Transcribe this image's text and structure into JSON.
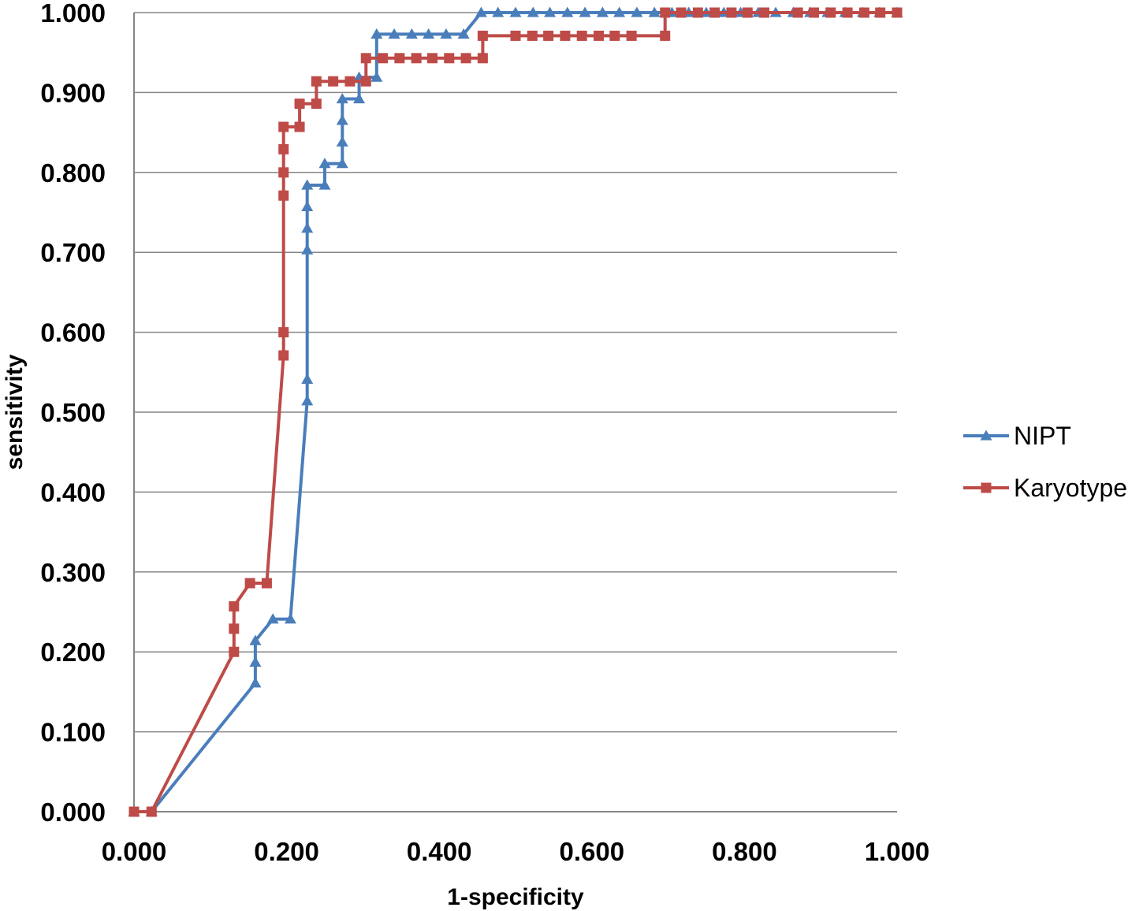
{
  "chart_data": {
    "type": "line",
    "title": "",
    "xlabel": "1-specificity",
    "ylabel": "sensitivity",
    "xlim": [
      0,
      1
    ],
    "ylim": [
      0,
      1
    ],
    "x_ticks": [
      "0.000",
      "0.200",
      "0.400",
      "0.600",
      "0.800",
      "1.000"
    ],
    "y_ticks": [
      "0.000",
      "0.100",
      "0.200",
      "0.300",
      "0.400",
      "0.500",
      "0.600",
      "0.700",
      "0.800",
      "0.900",
      "1.000"
    ],
    "grid": "horizontal",
    "legend_position": "right",
    "series": [
      {
        "name": "NIPT",
        "color": "#4a7ebb",
        "marker": "triangle",
        "points": [
          [
            0.0,
            0.0
          ],
          [
            0.023,
            0.0
          ],
          [
            0.159,
            0.161
          ],
          [
            0.159,
            0.187
          ],
          [
            0.159,
            0.214
          ],
          [
            0.182,
            0.241
          ],
          [
            0.205,
            0.241
          ],
          [
            0.227,
            0.514
          ],
          [
            0.227,
            0.541
          ],
          [
            0.227,
            0.703
          ],
          [
            0.227,
            0.73
          ],
          [
            0.227,
            0.757
          ],
          [
            0.227,
            0.784
          ],
          [
            0.25,
            0.784
          ],
          [
            0.25,
            0.811
          ],
          [
            0.273,
            0.811
          ],
          [
            0.273,
            0.838
          ],
          [
            0.273,
            0.865
          ],
          [
            0.273,
            0.892
          ],
          [
            0.295,
            0.892
          ],
          [
            0.295,
            0.919
          ],
          [
            0.318,
            0.919
          ],
          [
            0.318,
            0.973
          ],
          [
            0.341,
            0.973
          ],
          [
            0.364,
            0.973
          ],
          [
            0.386,
            0.973
          ],
          [
            0.409,
            0.973
          ],
          [
            0.432,
            0.973
          ],
          [
            0.455,
            1.0
          ],
          [
            0.477,
            1.0
          ],
          [
            0.5,
            1.0
          ],
          [
            0.523,
            1.0
          ],
          [
            0.545,
            1.0
          ],
          [
            0.568,
            1.0
          ],
          [
            0.591,
            1.0
          ],
          [
            0.614,
            1.0
          ],
          [
            0.636,
            1.0
          ],
          [
            0.659,
            1.0
          ],
          [
            0.682,
            1.0
          ],
          [
            0.705,
            1.0
          ],
          [
            0.727,
            1.0
          ],
          [
            0.75,
            1.0
          ],
          [
            0.773,
            1.0
          ],
          [
            0.795,
            1.0
          ],
          [
            0.818,
            1.0
          ],
          [
            0.841,
            1.0
          ],
          [
            0.864,
            1.0
          ],
          [
            0.886,
            1.0
          ],
          [
            0.909,
            1.0
          ],
          [
            0.932,
            1.0
          ],
          [
            0.955,
            1.0
          ],
          [
            0.977,
            1.0
          ],
          [
            1.0,
            1.0
          ]
        ]
      },
      {
        "name": "Karyotype",
        "color": "#be4b48",
        "marker": "square",
        "points": [
          [
            0.0,
            0.0
          ],
          [
            0.023,
            0.0
          ],
          [
            0.131,
            0.2
          ],
          [
            0.131,
            0.229
          ],
          [
            0.131,
            0.257
          ],
          [
            0.152,
            0.286
          ],
          [
            0.174,
            0.286
          ],
          [
            0.196,
            0.571
          ],
          [
            0.196,
            0.6
          ],
          [
            0.196,
            0.771
          ],
          [
            0.196,
            0.8
          ],
          [
            0.196,
            0.829
          ],
          [
            0.196,
            0.857
          ],
          [
            0.217,
            0.857
          ],
          [
            0.217,
            0.886
          ],
          [
            0.239,
            0.886
          ],
          [
            0.239,
            0.914
          ],
          [
            0.261,
            0.914
          ],
          [
            0.283,
            0.914
          ],
          [
            0.304,
            0.914
          ],
          [
            0.304,
            0.943
          ],
          [
            0.326,
            0.943
          ],
          [
            0.348,
            0.943
          ],
          [
            0.37,
            0.943
          ],
          [
            0.391,
            0.943
          ],
          [
            0.413,
            0.943
          ],
          [
            0.435,
            0.943
          ],
          [
            0.457,
            0.943
          ],
          [
            0.457,
            0.971
          ],
          [
            0.5,
            0.971
          ],
          [
            0.522,
            0.971
          ],
          [
            0.543,
            0.971
          ],
          [
            0.565,
            0.971
          ],
          [
            0.587,
            0.971
          ],
          [
            0.609,
            0.971
          ],
          [
            0.63,
            0.971
          ],
          [
            0.652,
            0.971
          ],
          [
            0.696,
            0.971
          ],
          [
            0.696,
            1.0
          ],
          [
            0.717,
            1.0
          ],
          [
            0.739,
            1.0
          ],
          [
            0.761,
            1.0
          ],
          [
            0.783,
            1.0
          ],
          [
            0.804,
            1.0
          ],
          [
            0.826,
            1.0
          ],
          [
            0.87,
            1.0
          ],
          [
            0.891,
            1.0
          ],
          [
            0.913,
            1.0
          ],
          [
            0.935,
            1.0
          ],
          [
            0.957,
            1.0
          ],
          [
            0.978,
            1.0
          ],
          [
            1.0,
            1.0
          ]
        ]
      }
    ]
  }
}
